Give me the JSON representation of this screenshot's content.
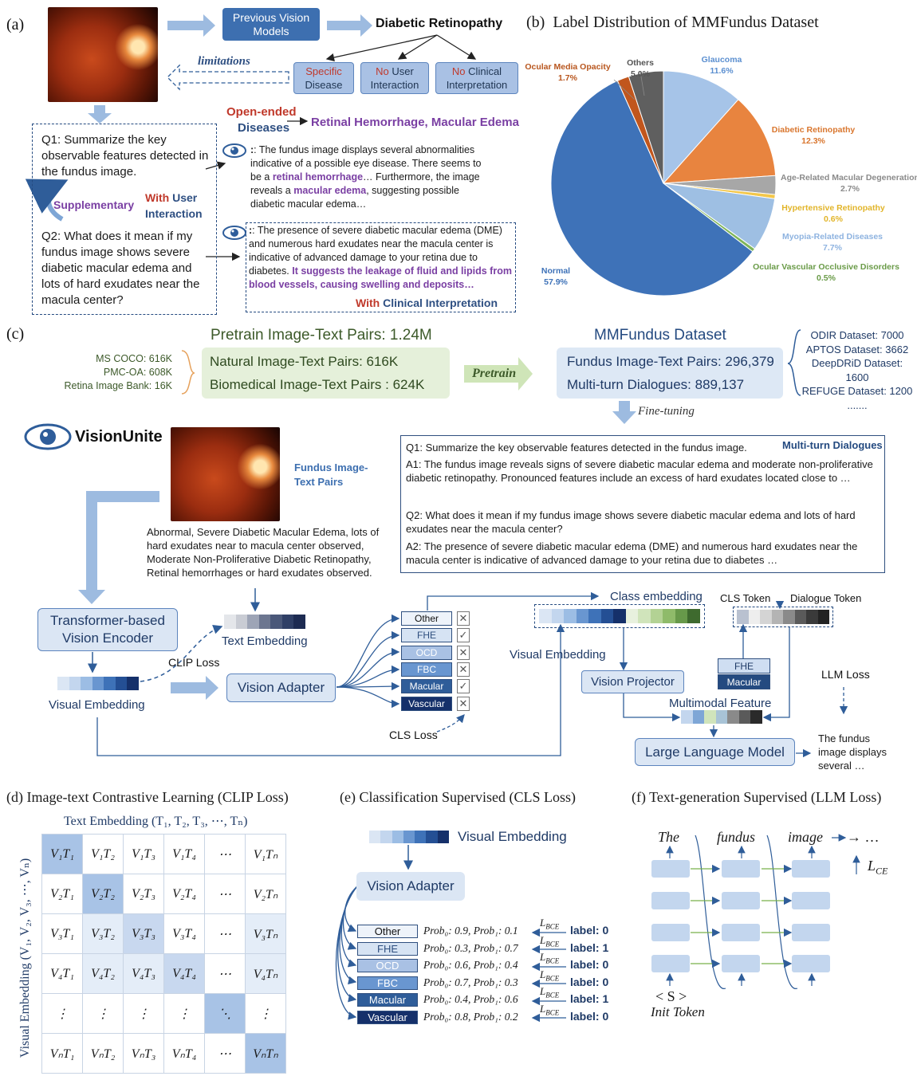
{
  "panel_a": {
    "label": "(a)",
    "previous_models": "Previous Vision Models",
    "diabetic_retinopathy": "Diabetic Retinopathy",
    "limitations": "limitations",
    "lim1_a": "Specific",
    "lim1_b": "Disease",
    "lim2_a": "No",
    "lim2_b": "User",
    "lim2_c": "Interaction",
    "lim3_a": "No",
    "lim3_b": "Clinical",
    "lim3_c": "Interpretation",
    "open_ended_a": "Open-ended",
    "open_ended_b": "Diseases",
    "retinal": "Retinal Hemorrhage, Macular Edema",
    "q1": "Q1: Summarize the key observable features detected in the fundus image.",
    "supplementary": "Supplementary",
    "with_user_a": "With",
    "with_user_b": "User",
    "with_user_c": "Interaction",
    "q2": "Q2: What does it mean if my fundus image shows severe diabetic macular edema and lots of hard exudates near the macula center?",
    "a1_p1": ": The fundus image displays several abnormalities indicative of a possible eye disease. There seems to be a ",
    "a1_h1": "retinal hemorrhage",
    "a1_p2": "… Furthermore, the image reveals a ",
    "a1_h2": "macular edema",
    "a1_p3": ", suggesting possible diabetic macular edema…",
    "a2_p1": ": The presence of severe diabetic macular edema (DME) and numerous hard exudates near the macula center is indicative of advanced damage to your retina due to diabetes. ",
    "a2_h": "It suggests the leakage of fluid and lipids from blood vessels, causing swelling and deposits…",
    "with_clin_a": "With",
    "with_clin_b": "Clinical Interpretation"
  },
  "panel_b": {
    "label": "(b)",
    "title": "Label Distribution of MMFundus Dataset"
  },
  "chart_data": {
    "type": "pie",
    "title": "Label Distribution of MMFundus Dataset",
    "categories": [
      "Glaucoma",
      "Diabetic Retinopathy",
      "Age-Related Macular Degeneration",
      "Hypertensive Retinopathy",
      "Myopia-Related Diseases",
      "Ocular Vascular Occlusive Disorders",
      "Normal",
      "Ocular Media Opacity",
      "Others"
    ],
    "values": [
      11.6,
      12.3,
      2.7,
      0.6,
      7.7,
      0.5,
      57.9,
      1.7,
      5.0
    ],
    "labels": [
      "11.6%",
      "12.3%",
      "2.7%",
      "0.6%",
      "7.7%",
      "0.5%",
      "57.9%",
      "1.7%",
      "5.0%"
    ],
    "colors": [
      "#a6c4e8",
      "#e8843f",
      "#a7a7a7",
      "#f3c74a",
      "#9ebfe3",
      "#7fb55a",
      "#3e72b8",
      "#c1561d",
      "#5f5f5f"
    ],
    "label_colors": [
      "#5b8fd0",
      "#d9762e",
      "#8a8a8a",
      "#e2b52a",
      "#8eb3e0",
      "#6a9b48",
      "#3e72b8",
      "#b8561e",
      "#555555"
    ]
  },
  "panel_c": {
    "label": "(c)",
    "pretrain_title": "Pretrain Image-Text Pairs: 1.24M",
    "mscoco": "MS COCO: 616K",
    "pmcoa": "PMC-OA: 608K",
    "retina_bank": "Retina Image Bank: 16K",
    "natural": "Natural Image-Text Pairs: 616K",
    "biomedical": "Biomedical Image-Text Pairs : 624K",
    "pretrain": "Pretrain",
    "mm_title": "MMFundus Dataset",
    "fundus_pairs": "Fundus Image-Text Pairs: 296,379",
    "dialogues": "Multi-turn Dialogues: 889,137",
    "odir": "ODIR Dataset: 7000",
    "aptos": "APTOS Dataset: 3662",
    "deepdrid": "DeepDRiD Dataset: 1600",
    "refuge": "REFUGE Dataset: 1200",
    "dots": ".......",
    "finetuning": "Fine-tuning",
    "visionunite": "VisionUnite",
    "fundus_text_pairs_a": "Fundus Image-",
    "fundus_text_pairs_b": "Text Pairs",
    "caption": "Abnormal, Severe Diabetic Macular Edema, lots of hard exudates near to macula center observed, Moderate Non-Proliferative Diabetic Retinopathy, Retinal hemorrhages or hard exudates observed.",
    "mt_title": "Multi-turn Dialogues",
    "mt_q1": "Q1: Summarize the key observable features detected in the fundus image.",
    "mt_a1": "A1: The fundus image reveals signs of severe diabetic macular edema and moderate non-proliferative diabetic retinopathy. Pronounced features include an excess of hard exudates located close to …",
    "mt_q2": "Q2: What does it mean if my fundus image shows severe diabetic macular edema and lots of hard exudates near the macula center?",
    "mt_a2": "A2: The presence of severe diabetic macular edema (DME) and numerous hard exudates near the macula center is indicative of advanced damage to your retina due to diabetes …",
    "transformer_a": "Transformer-based",
    "transformer_b": "Vision Encoder",
    "text_embedding": "Text Embedding",
    "clip_loss": "CLIP Loss",
    "visual_embedding": "Visual Embedding",
    "vision_adapter": "Vision Adapter",
    "cls_labels": [
      "Other",
      "FHE",
      "OCD",
      "FBC",
      "Macular",
      "Vascular"
    ],
    "cls_checks": [
      "✕",
      "✓",
      "✕",
      "✕",
      "✓",
      "✕"
    ],
    "cls_loss": "CLS Loss",
    "class_embedding": "Class embedding",
    "visual_embedding2": "Visual Embedding",
    "cls_token": "CLS Token",
    "dialogue_token": "Dialogue Token",
    "fhe": "FHE",
    "macular": "Macular",
    "vision_projector": "Vision Projector",
    "multimodal": "Multimodal Feature",
    "llm_loss": "LLM Loss",
    "llm": "Large Language Model",
    "output_a": "The fundus",
    "output_b": "image displays",
    "output_c": "several …"
  },
  "panel_d": {
    "label": "(d) Image-text Contrastive Learning (CLIP Loss)",
    "text_embedding": "Text Embedding (T₁, T₂, T₃, ⋯, Tₙ)",
    "visual_embedding": "Visual Embedding (V₁, V₂, V₃, ⋯, Vₙ)",
    "rows": [
      [
        "V₁T₁",
        "V₁T₂",
        "V₁T₃",
        "V₁T₄",
        "⋯",
        "V₁Tₙ"
      ],
      [
        "V₂T₁",
        "V₂T₂",
        "V₂T₃",
        "V₂T₄",
        "⋯",
        "V₂Tₙ"
      ],
      [
        "V₃T₁",
        "V₃T₂",
        "V₃T₃",
        "V₃T₄",
        "⋯",
        "V₃Tₙ"
      ],
      [
        "V₄T₁",
        "V₄T₂",
        "V₄T₃",
        "V₄T₄",
        "⋯",
        "V₄Tₙ"
      ],
      [
        "⋮",
        "⋮",
        "⋮",
        "⋮",
        "⋱",
        "⋮"
      ],
      [
        "VₙT₁",
        "VₙT₂",
        "VₙT₃",
        "VₙT₄",
        "⋯",
        "VₙTₙ"
      ]
    ]
  },
  "panel_e": {
    "label": "(e) Classification Supervised (CLS Loss)",
    "visual_embedding": "Visual Embedding",
    "vision_adapter": "Vision Adapter",
    "classes": [
      "Other",
      "FHE",
      "OCD",
      "FBC",
      "Macular",
      "Vascular"
    ],
    "probs": [
      "Prob₀: 0.9, Prob₁: 0.1",
      "Prob₀: 0.3, Prob₁: 0.7",
      "Prob₀: 0.6, Prob₁: 0.4",
      "Prob₀: 0.7, Prob₁: 0.3",
      "Prob₀: 0.4, Prob₁: 0.6",
      "Prob₀: 0.8, Prob₁: 0.2"
    ],
    "lbce": "L",
    "lbce_sub": "BCE",
    "labels": [
      "label: 0",
      "label: 1",
      "label: 0",
      "label: 0",
      "label: 1",
      "label: 0"
    ]
  },
  "panel_f": {
    "label": "(f) Text-generation Supervised (LLM Loss)",
    "words": [
      "The",
      "fundus",
      "image",
      "→ …"
    ],
    "lce": "L",
    "lce_sub": "CE",
    "init_a": "< S >",
    "init_b": "Init Token"
  }
}
